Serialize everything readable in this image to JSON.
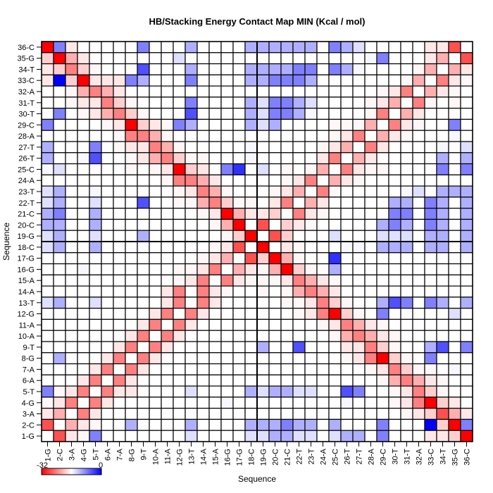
{
  "chart_data": {
    "type": "heatmap",
    "title": "HB/Stacking Energy Contact Map MIN (Kcal / mol)",
    "xlabel": "Sequence",
    "ylabel": "Sequence",
    "x_categories": [
      "1-G",
      "2-C",
      "3-A",
      "4-G",
      "5-T",
      "6-A",
      "7-A",
      "8-G",
      "9-T",
      "10-A",
      "11-A",
      "12-G",
      "13-T",
      "14-A",
      "15-A",
      "16-G",
      "17-G",
      "18-C",
      "19-G",
      "20-C",
      "21-C",
      "22-T",
      "23-T",
      "24-A",
      "25-C",
      "26-T",
      "27-T",
      "28-A",
      "29-C",
      "30-T",
      "31-T",
      "32-A",
      "33-C",
      "34-T",
      "35-G",
      "36-C"
    ],
    "y_categories_top_to_bottom": [
      "36-C",
      "35-G",
      "34-T",
      "33-C",
      "32-A",
      "31-T",
      "30-T",
      "29-C",
      "28-A",
      "27-T",
      "26-T",
      "25-C",
      "24-A",
      "23-T",
      "22-T",
      "21-C",
      "20-C",
      "19-G",
      "18-C",
      "17-G",
      "16-G",
      "15-A",
      "14-A",
      "13-T",
      "12-G",
      "11-A",
      "10-A",
      "9-T",
      "8-G",
      "7-A",
      "6-A",
      "5-T",
      "4-G",
      "3-A",
      "2-C",
      "1-G"
    ],
    "colorbar": {
      "min": -32,
      "max": 0,
      "min_label": "-32",
      "max_label": "0",
      "colors": [
        "#ff0000",
        "#ffffff",
        "#0000ff"
      ]
    },
    "grid": true,
    "divider_after_category": "18-C",
    "values_rows_top_to_bottom": [
      [
        -32,
        -8,
        -17.5,
        -16,
        -16,
        -16,
        -16,
        -16,
        -8,
        -16,
        -16,
        -16,
        -11,
        -16,
        -16,
        -16,
        -16,
        -11,
        -11,
        -11,
        -11,
        -11,
        -11,
        -16,
        -8,
        -11,
        -14,
        -16,
        -16,
        -16,
        -16,
        -16,
        -17.5,
        -17.5,
        -27,
        -16
      ],
      [
        -19,
        -32,
        -21,
        -17.5,
        -16,
        -16,
        -16,
        -16,
        -16,
        -16,
        -16,
        -14,
        -16,
        -16,
        -16,
        -16,
        -16,
        -16,
        -16,
        -16,
        -16,
        -16,
        -16,
        -16,
        -16,
        -16,
        -16,
        -15.5,
        -8,
        -16,
        -16,
        -16,
        -17.5,
        -21,
        -16,
        -27
      ],
      [
        -17.5,
        -19,
        -24,
        -19,
        -16.5,
        -16,
        -16,
        -16,
        -5,
        -16,
        -16,
        -16,
        -11,
        -16,
        -16,
        -16,
        -16,
        -11,
        -11,
        -11,
        -11,
        -8,
        -8,
        -16,
        -8,
        -11,
        -15.5,
        -16,
        -16,
        -16,
        -16,
        -16.5,
        -21,
        -16,
        -21,
        -17.5
      ],
      [
        -17.5,
        0,
        -19,
        -32,
        -17.5,
        -17.5,
        -17.5,
        -8,
        -11,
        -16,
        -16,
        -16,
        -8,
        -16,
        -16,
        -16,
        -16,
        -11,
        -11,
        -8,
        -8,
        -8,
        -11,
        -16,
        -16,
        -16,
        -16,
        -16,
        -16,
        -16,
        -16.5,
        -21,
        -16,
        -24,
        -17.5,
        -16.5
      ],
      [
        -16,
        -16,
        -16.5,
        -21,
        -24,
        -21,
        -17.5,
        -16,
        -16,
        -16,
        -16,
        -16,
        -16,
        -16,
        -16,
        -16,
        -16,
        -16,
        -16,
        -16,
        -16,
        -16,
        -16,
        -16,
        -16,
        -16,
        -16,
        -16,
        -16.5,
        -17.5,
        -24,
        -16,
        -21,
        -17.5,
        -16.5,
        -16
      ],
      [
        -16,
        -16,
        -16.5,
        -17.5,
        -17.5,
        -24,
        -19,
        -16.5,
        -16,
        -16,
        -16,
        -16,
        -8,
        -16,
        -16,
        -16,
        -16,
        -11,
        -14,
        -8,
        -8,
        -11,
        -14,
        -16,
        -16,
        -16,
        -16,
        -16.5,
        -17.5,
        -21,
        -16,
        -24,
        -16.5,
        -16,
        -16.5,
        -16
      ],
      [
        -16,
        -8,
        -16,
        -16.5,
        -17.5,
        -21,
        -24,
        -19,
        -16.5,
        -16,
        -16,
        -16,
        -5,
        -16,
        -16,
        -16,
        -16,
        -11,
        -14,
        -8,
        -8,
        -11,
        -15.5,
        -16,
        -16,
        -16,
        -16,
        -16.5,
        -24,
        -16,
        -21,
        -17.5,
        -16,
        -16,
        -16,
        -16
      ],
      [
        -8,
        -16,
        -16,
        -16,
        -16,
        -16.5,
        -17.5,
        -32,
        -19,
        -17.5,
        -16.5,
        -8,
        -11,
        -16,
        -16,
        -16,
        -16,
        -11,
        -14,
        -11,
        -16,
        -16,
        -16,
        -16,
        -16.5,
        -16.5,
        -16.5,
        -21,
        -16,
        -24,
        -17.5,
        -16.5,
        -16,
        -16,
        -8,
        -16
      ],
      [
        -16,
        -16,
        -16,
        -16,
        -16,
        -16,
        -16.5,
        -24,
        -24,
        -21,
        -16.5,
        -16,
        -16,
        -16,
        -16,
        -16,
        -16,
        -16,
        -16,
        -16,
        -16,
        -16,
        -16,
        -16,
        -16.5,
        -17.5,
        -24,
        -16,
        -21,
        -17.5,
        -16.5,
        -16,
        -16,
        -16,
        -15.5,
        -16
      ],
      [
        -11,
        -16,
        -16,
        -16,
        -8,
        -16,
        -16.5,
        -17.5,
        -17.5,
        -24,
        -21,
        -16.5,
        -16,
        -16,
        -16,
        -16,
        -16,
        -15.5,
        -16,
        -16,
        -16,
        -16,
        -16,
        -16.5,
        -17.5,
        -21,
        -16,
        -24,
        -17.5,
        -16,
        -16,
        -16,
        -16,
        -15.5,
        -16,
        -14
      ],
      [
        -11,
        -16,
        -16,
        -15.5,
        -5,
        -16,
        -16,
        -16.5,
        -17.5,
        -21,
        -24,
        -19,
        -16.5,
        -16.5,
        -16,
        -16,
        -16,
        -15.5,
        -16,
        -16,
        -16,
        -16,
        -16,
        -17.5,
        -24,
        -16,
        -21,
        -17.5,
        -16,
        -16,
        -16,
        -16,
        -16,
        -11,
        -16,
        -11
      ],
      [
        -15.5,
        -14,
        -16,
        -16,
        -16,
        -16,
        -16,
        -16.5,
        -16,
        -16.5,
        -17.5,
        -32,
        -19,
        -17.5,
        -16,
        -8,
        -3,
        -16,
        -14,
        -16,
        -16.5,
        -16,
        -16.5,
        -21,
        -16,
        -24,
        -17.5,
        -16.5,
        -16.5,
        -16,
        -16,
        -16,
        -16,
        -8,
        -16,
        -8
      ],
      [
        -16,
        -16,
        -16,
        -16,
        -16,
        -16,
        -16,
        -16,
        -16,
        -16,
        -16.5,
        -24,
        -24,
        -21,
        -17.5,
        -16,
        -16,
        -16,
        -16,
        -16,
        -16.5,
        -17.5,
        -24,
        -16,
        -21,
        -17.5,
        -16.5,
        -16,
        -16,
        -16,
        -16,
        -16,
        -16,
        -16,
        -16,
        -16
      ],
      [
        -14,
        -11,
        -16,
        -16,
        -15.5,
        -16,
        -16,
        -16,
        -16,
        -16,
        -16,
        -16.5,
        -17.5,
        -24,
        -21,
        -16.5,
        -16,
        -16,
        -16,
        -16.5,
        -17.5,
        -21,
        -16,
        -24,
        -16.5,
        -16,
        -16,
        -16,
        -16,
        -16,
        -15.5,
        -14,
        -16,
        -11,
        -11,
        -11
      ],
      [
        -14,
        -11,
        -16,
        -16,
        -14,
        -16,
        -16,
        -16,
        -5,
        -16,
        -16,
        -16.5,
        -16.5,
        -21,
        -24,
        -19,
        -16.5,
        -16.5,
        -16,
        -17.5,
        -24,
        -16,
        -21,
        -17.5,
        -16,
        -16,
        -16,
        -16,
        -16,
        -11,
        -11,
        -16,
        -8,
        -11,
        -16,
        -11
      ],
      [
        -11,
        -8,
        -16,
        -16,
        -11,
        -16,
        -16,
        -16,
        -16,
        -16,
        -16,
        -16,
        -16,
        -16.5,
        -17.5,
        -32,
        -21,
        -17.5,
        -17.5,
        -19,
        -16,
        -24,
        -17.5,
        -16.5,
        -16,
        -16,
        -16,
        -16,
        -16,
        -8,
        -8,
        -16,
        -8,
        -11,
        -16,
        -11
      ],
      [
        -11,
        -11,
        -16,
        -16,
        -11,
        -16,
        -16,
        -16,
        -16,
        -16,
        -16,
        -16,
        -16,
        -16,
        -16.5,
        -21,
        -32,
        -16,
        -27,
        -16,
        -19,
        -17.5,
        -16.5,
        -16,
        -16,
        -16,
        -16,
        -16,
        -11,
        -8,
        -11,
        -16,
        -8,
        -11,
        -16,
        -11
      ],
      [
        -14,
        -11,
        -16,
        -16,
        -14,
        -16,
        -16,
        -16,
        -11,
        -16,
        -16,
        -16,
        -16,
        -16,
        -16,
        -16.5,
        -19,
        -32,
        -16,
        -27,
        -19,
        -16,
        -16,
        -16,
        -14,
        -16,
        -16,
        -16,
        -14,
        -14,
        -14,
        -16,
        -11,
        -11,
        -16,
        -11
      ],
      [
        -14,
        -11,
        -16,
        -16,
        -11,
        -16,
        -16,
        -16,
        -16,
        -16,
        -16,
        -16,
        -16,
        -16,
        -16.5,
        -17.5,
        -27,
        -16,
        -32,
        -16,
        -17.5,
        -16.5,
        -16,
        -16,
        -16,
        -15.5,
        -15.5,
        -16,
        -11,
        -11,
        -11,
        -16,
        -11,
        -11,
        -16,
        -11
      ],
      [
        -16,
        -16,
        -16,
        -16,
        -16,
        -16,
        -16,
        -16,
        -16,
        -16,
        -16,
        -16,
        -16,
        -16.5,
        -17.5,
        -21,
        -16,
        -27,
        -19,
        -32,
        -21,
        -16.5,
        -16,
        -16,
        -3,
        -16,
        -16,
        -16,
        -16,
        -16,
        -16,
        -16,
        -16,
        -16,
        -16,
        -16
      ],
      [
        -16,
        -16,
        -16,
        -15.5,
        -16,
        -16,
        -16,
        -16,
        -16,
        -16,
        -16,
        -16.5,
        -16.5,
        -17.5,
        -24,
        -16,
        -21,
        -17.5,
        -16.5,
        -21,
        -32,
        -19,
        -16.5,
        -16,
        -11,
        -16,
        -16,
        -16,
        -16,
        -16,
        -16,
        -16,
        -16,
        -16,
        -16,
        -16
      ],
      [
        -16,
        -16,
        -16,
        -16,
        -16,
        -16,
        -16,
        -16,
        -16,
        -16,
        -16,
        -16.5,
        -17.5,
        -24,
        -16,
        -24,
        -17.5,
        -16.5,
        -16.5,
        -16.5,
        -17.5,
        -24,
        -21,
        -17.5,
        -16.5,
        -16,
        -16,
        -16,
        -16,
        -16,
        -16,
        -16,
        -16,
        -16,
        -16,
        -16
      ],
      [
        -16,
        -16,
        -16,
        -16,
        -16,
        -16,
        -16,
        -16,
        -16,
        -16,
        -17.5,
        -24,
        -16,
        -24,
        -17.5,
        -16.5,
        -16,
        -16,
        -16.5,
        -16,
        -16.5,
        -21,
        -24,
        -21,
        -17.5,
        -16,
        -16,
        -16,
        -16,
        -16,
        -16,
        -16,
        -16,
        -16,
        -16,
        -16
      ],
      [
        -14,
        -11,
        -16,
        -16,
        -14,
        -16,
        -16,
        -16,
        -16,
        -16,
        -17.5,
        -24,
        -16,
        -24,
        -17.5,
        -16,
        -16,
        -16,
        -16,
        -16,
        -16.5,
        -16.5,
        -17.5,
        -24,
        -19,
        -16.5,
        -16,
        -16,
        -11,
        -5,
        -8,
        -16,
        -8,
        -11,
        -16,
        -11
      ],
      [
        -16,
        -16,
        -16,
        -16,
        -16,
        -16,
        -16,
        -16,
        -16,
        -17.5,
        -24,
        -16,
        -24,
        -17.5,
        -16,
        -16,
        -16,
        -16,
        -16,
        -16,
        -16,
        -16.5,
        -17.5,
        -24,
        -32,
        -19,
        -16.5,
        -16,
        -8,
        -16,
        -16,
        -16,
        -16,
        -16,
        -14,
        -16
      ],
      [
        -16,
        -16,
        -16,
        -16,
        -16,
        -16,
        -16,
        -16,
        -17.5,
        -24,
        -16,
        -24,
        -17.5,
        -16,
        -16,
        -16,
        -16,
        -16,
        -16,
        -16,
        -16,
        -16,
        -16,
        -16.5,
        -17.5,
        -24,
        -21,
        -17.5,
        -16.5,
        -16,
        -16,
        -16,
        -16,
        -16,
        -16,
        -16
      ],
      [
        -16,
        -16,
        -16,
        -16,
        -16,
        -16,
        -16,
        -17.5,
        -24,
        -16,
        -24,
        -17.5,
        -16,
        -16,
        -16,
        -16,
        -16,
        -16,
        -16,
        -16,
        -16,
        -16,
        -16,
        -16,
        -16.5,
        -21,
        -24,
        -21,
        -17.5,
        -16.5,
        -16,
        -16,
        -16,
        -16,
        -16,
        -16
      ],
      [
        -16,
        -16,
        -16,
        -16,
        -16,
        -16,
        -17.5,
        -24,
        -16,
        -24,
        -17.5,
        -16,
        -16,
        -16,
        -16,
        -16,
        -16,
        -16,
        -11,
        -16,
        -16,
        -5,
        -16,
        -16,
        -16,
        -17.5,
        -17.5,
        -24,
        -19,
        -16.5,
        -16,
        -16,
        -11,
        -5,
        -16,
        -8
      ],
      [
        -16,
        -11,
        -16,
        -16,
        -16,
        -17.5,
        -24,
        -16,
        -24,
        -17.5,
        -16,
        -16,
        -16,
        -16,
        -16,
        -16,
        -16,
        -16,
        -16,
        -16,
        -16,
        -16,
        -16,
        -16,
        -16,
        -16.5,
        -17.5,
        -24,
        -32,
        -19,
        -16.5,
        -16,
        -8,
        -16,
        -16,
        -16
      ],
      [
        -16,
        -16,
        -16,
        -16,
        -17.5,
        -24,
        -16,
        -24,
        -17.5,
        -16,
        -16,
        -16,
        -16,
        -16,
        -16,
        -16,
        -16,
        -16,
        -16,
        -16,
        -16,
        -16,
        -16,
        -16,
        -16,
        -16,
        -16,
        -16.5,
        -17.5,
        -24,
        -19,
        -16.5,
        -16.5,
        -16,
        -15.5,
        -16
      ],
      [
        -16,
        -16,
        -16,
        -17.5,
        -24,
        -16,
        -24,
        -17.5,
        -16,
        -16,
        -16,
        -16,
        -16,
        -16,
        -16,
        -16,
        -16,
        -16,
        -16,
        -16,
        -16,
        -16,
        -16,
        -16,
        -16,
        -16,
        -16,
        -16,
        -16.5,
        -21,
        -24,
        -21,
        -17.5,
        -16.5,
        -16,
        -16
      ],
      [
        -8,
        -16.5,
        -17.5,
        -24,
        -16,
        -24,
        -17.5,
        -17.5,
        -16,
        -16,
        -16,
        -16,
        -14,
        -16,
        -16,
        -16,
        -16,
        -11,
        -14,
        -11,
        -11,
        -14,
        -14,
        -16,
        -16,
        -5,
        -8,
        -16,
        -16,
        -16.5,
        -17.5,
        -24,
        -19,
        -16.5,
        -16,
        -16
      ],
      [
        -16.5,
        -17.5,
        -24,
        -16,
        -24,
        -17.5,
        -16,
        -16,
        -16,
        -16,
        -16,
        -16,
        -16,
        -16,
        -16,
        -15.5,
        -16,
        -16,
        -16,
        -16,
        -16,
        -16,
        -16,
        -16,
        -16,
        -15.5,
        -16,
        -16,
        -16,
        -16.5,
        -17.5,
        -24,
        -32,
        -19,
        -17.5,
        -16
      ],
      [
        -17.5,
        -21,
        -16,
        -24,
        -17.5,
        -16,
        -16,
        -16,
        -16,
        -16,
        -16,
        -16,
        -16,
        -16,
        -16,
        -16,
        -16,
        -16,
        -16,
        -16,
        -16,
        -16,
        -16,
        -16,
        -16,
        -16,
        -16,
        -16,
        -16,
        -16,
        -16.5,
        -17.5,
        -19,
        -27,
        -21,
        -17.5
      ],
      [
        -27,
        -16,
        -21,
        -17.5,
        -16.5,
        -16,
        -16,
        -11,
        -16,
        -16,
        -16,
        -16,
        -11,
        -16,
        -16,
        -16,
        -16,
        -11,
        -11,
        -11,
        -8,
        -11,
        -11,
        -16,
        -11,
        -16,
        -16,
        -16,
        -8,
        -16,
        -16,
        -16,
        0,
        -19,
        -32,
        -8
      ],
      [
        -16,
        -27,
        -17.5,
        -16.5,
        -8,
        -16,
        -16,
        -16,
        -16,
        -16,
        -16,
        -16,
        -14,
        -16,
        -16,
        -16,
        -16,
        -14,
        -14,
        -11,
        -11,
        -14,
        -14,
        -16,
        -14,
        -11,
        -11,
        -16,
        -8,
        -16,
        -16,
        -16,
        -17.5,
        -17.5,
        -19,
        -32
      ]
    ]
  }
}
